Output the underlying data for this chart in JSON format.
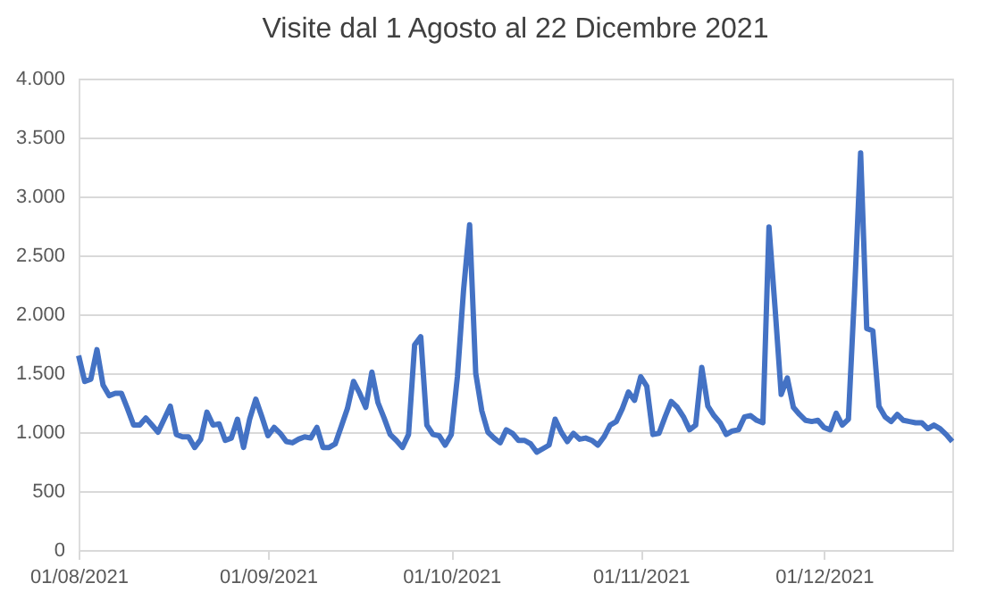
{
  "chart_data": {
    "type": "line",
    "title": "Visite dal 1 Agosto al 22 Dicembre 2021",
    "x": [
      "2021-08-01",
      "2021-08-02",
      "2021-08-03",
      "2021-08-04",
      "2021-08-05",
      "2021-08-06",
      "2021-08-07",
      "2021-08-08",
      "2021-08-09",
      "2021-08-10",
      "2021-08-11",
      "2021-08-12",
      "2021-08-13",
      "2021-08-14",
      "2021-08-15",
      "2021-08-16",
      "2021-08-17",
      "2021-08-18",
      "2021-08-19",
      "2021-08-20",
      "2021-08-21",
      "2021-08-22",
      "2021-08-23",
      "2021-08-24",
      "2021-08-25",
      "2021-08-26",
      "2021-08-27",
      "2021-08-28",
      "2021-08-29",
      "2021-08-30",
      "2021-08-31",
      "2021-09-01",
      "2021-09-02",
      "2021-09-03",
      "2021-09-04",
      "2021-09-05",
      "2021-09-06",
      "2021-09-07",
      "2021-09-08",
      "2021-09-09",
      "2021-09-10",
      "2021-09-11",
      "2021-09-12",
      "2021-09-13",
      "2021-09-14",
      "2021-09-15",
      "2021-09-16",
      "2021-09-17",
      "2021-09-18",
      "2021-09-19",
      "2021-09-20",
      "2021-09-21",
      "2021-09-22",
      "2021-09-23",
      "2021-09-24",
      "2021-09-25",
      "2021-09-26",
      "2021-09-27",
      "2021-09-28",
      "2021-09-29",
      "2021-09-30",
      "2021-10-01",
      "2021-10-02",
      "2021-10-03",
      "2021-10-04",
      "2021-10-05",
      "2021-10-06",
      "2021-10-07",
      "2021-10-08",
      "2021-10-09",
      "2021-10-10",
      "2021-10-11",
      "2021-10-12",
      "2021-10-13",
      "2021-10-14",
      "2021-10-15",
      "2021-10-16",
      "2021-10-17",
      "2021-10-18",
      "2021-10-19",
      "2021-10-20",
      "2021-10-21",
      "2021-10-22",
      "2021-10-23",
      "2021-10-24",
      "2021-10-25",
      "2021-10-26",
      "2021-10-27",
      "2021-10-28",
      "2021-10-29",
      "2021-10-30",
      "2021-10-31",
      "2021-11-01",
      "2021-11-02",
      "2021-11-03",
      "2021-11-04",
      "2021-11-05",
      "2021-11-06",
      "2021-11-07",
      "2021-11-08",
      "2021-11-09",
      "2021-11-10",
      "2021-11-11",
      "2021-11-12",
      "2021-11-13",
      "2021-11-14",
      "2021-11-15",
      "2021-11-16",
      "2021-11-17",
      "2021-11-18",
      "2021-11-19",
      "2021-11-20",
      "2021-11-21",
      "2021-11-22",
      "2021-11-23",
      "2021-11-24",
      "2021-11-25",
      "2021-11-26",
      "2021-11-27",
      "2021-11-28",
      "2021-11-29",
      "2021-11-30",
      "2021-12-01",
      "2021-12-02",
      "2021-12-03",
      "2021-12-04",
      "2021-12-05",
      "2021-12-06",
      "2021-12-07",
      "2021-12-08",
      "2021-12-09",
      "2021-12-10",
      "2021-12-11",
      "2021-12-12",
      "2021-12-13",
      "2021-12-14",
      "2021-12-15",
      "2021-12-16",
      "2021-12-17",
      "2021-12-18",
      "2021-12-19",
      "2021-12-20",
      "2021-12-21",
      "2021-12-22"
    ],
    "series": [
      {
        "color": "#4472c4",
        "values": [
          1650,
          1430,
          1450,
          1700,
          1400,
          1310,
          1330,
          1330,
          1200,
          1060,
          1060,
          1120,
          1060,
          1000,
          1110,
          1220,
          980,
          960,
          960,
          870,
          940,
          1170,
          1060,
          1070,
          930,
          950,
          1110,
          870,
          1110,
          1280,
          1130,
          970,
          1040,
          990,
          920,
          910,
          940,
          960,
          950,
          1040,
          870,
          870,
          900,
          1050,
          1200,
          1430,
          1330,
          1210,
          1510,
          1250,
          1120,
          980,
          930,
          870,
          980,
          1740,
          1810,
          1060,
          980,
          970,
          890,
          980,
          1470,
          2200,
          2760,
          1500,
          1180,
          1000,
          950,
          910,
          1020,
          990,
          930,
          930,
          900,
          830,
          860,
          890,
          1110,
          1000,
          920,
          990,
          940,
          950,
          930,
          890,
          960,
          1060,
          1090,
          1200,
          1340,
          1270,
          1470,
          1390,
          980,
          990,
          1130,
          1260,
          1210,
          1130,
          1020,
          1060,
          1550,
          1220,
          1140,
          1080,
          980,
          1010,
          1020,
          1130,
          1140,
          1100,
          1080,
          2740,
          2050,
          1320,
          1460,
          1210,
          1150,
          1100,
          1090,
          1100,
          1040,
          1020,
          1160,
          1060,
          1110,
          2180,
          3370,
          1880,
          1860,
          1220,
          1130,
          1090,
          1150,
          1100,
          1090,
          1080,
          1080,
          1030,
          1060,
          1030,
          980,
          920
        ]
      }
    ],
    "xlim": [
      "2021-08-01",
      "2021-12-22"
    ],
    "xticks": [
      {
        "value": "2021-08-01",
        "label": "01/08/2021"
      },
      {
        "value": "2021-09-01",
        "label": "01/09/2021"
      },
      {
        "value": "2021-10-01",
        "label": "01/10/2021"
      },
      {
        "value": "2021-11-01",
        "label": "01/11/2021"
      },
      {
        "value": "2021-12-01",
        "label": "01/12/2021"
      }
    ],
    "ylim": [
      0,
      4000
    ],
    "yticks": [
      0,
      500,
      {
        "value": 1000,
        "label": "1.000"
      },
      {
        "value": 1500,
        "label": "1.500"
      },
      {
        "value": 2000,
        "label": "2.000"
      },
      {
        "value": 2500,
        "label": "2.500"
      },
      {
        "value": 3000,
        "label": "3.000"
      },
      {
        "value": 3500,
        "label": "3.500"
      },
      {
        "value": 4000,
        "label": "4.000"
      }
    ],
    "grid": "y",
    "marker": "none",
    "line_style": "solid",
    "legend": false
  }
}
